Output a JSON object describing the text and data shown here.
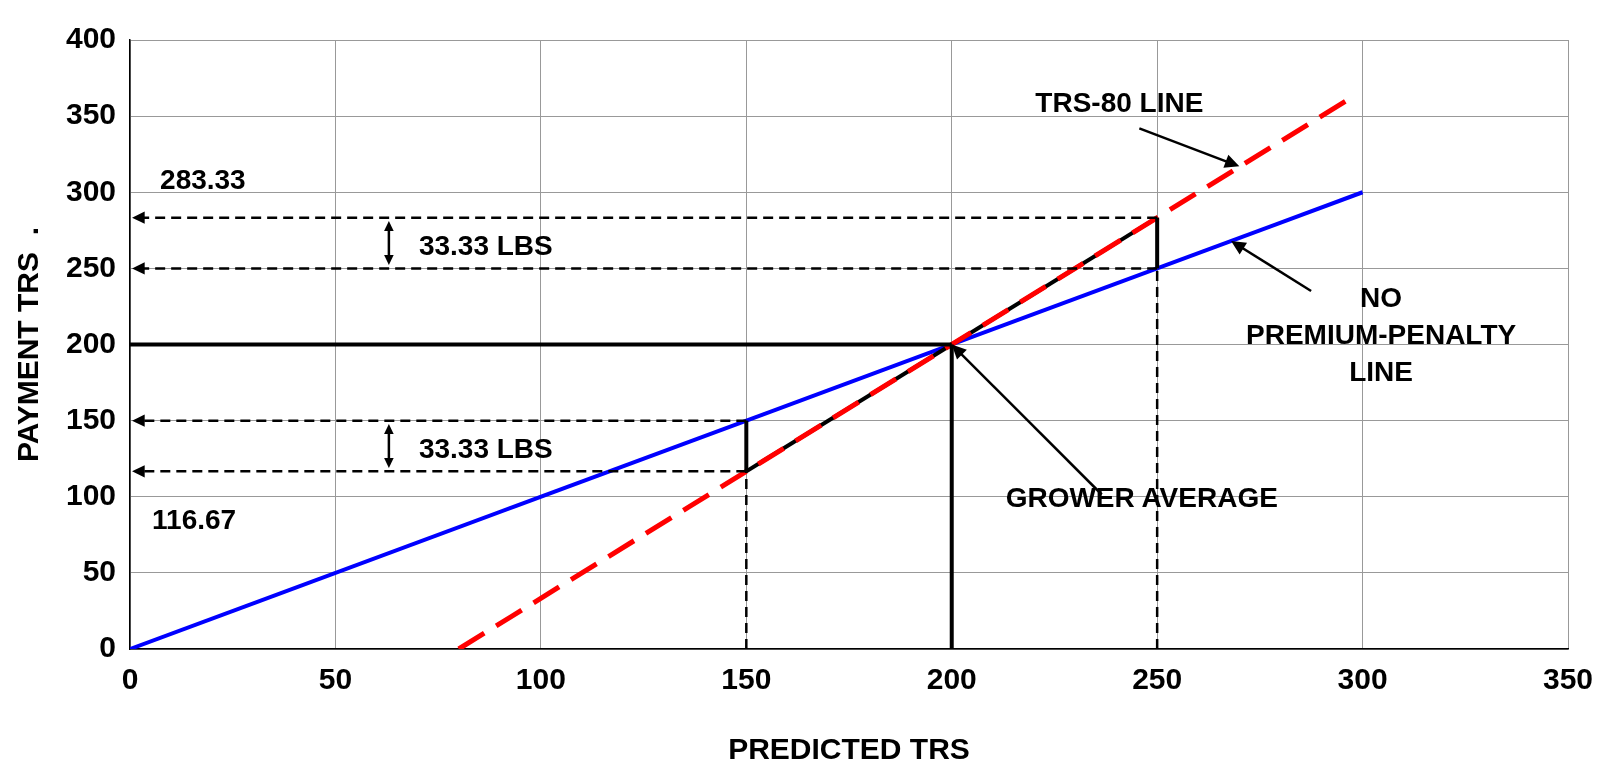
{
  "chart_data": {
    "type": "line",
    "xlabel": "PREDICTED TRS",
    "ylabel": "PAYMENT TRS  .",
    "xlim": [
      0,
      350
    ],
    "xticks": [
      0,
      50,
      100,
      150,
      200,
      250,
      300,
      350
    ],
    "ylim": [
      0,
      400
    ],
    "yticks": [
      0,
      50,
      100,
      150,
      200,
      250,
      300,
      350,
      400
    ],
    "grid": true,
    "legend": false,
    "marker": "none",
    "series": [
      {
        "color": "#0000ff",
        "x": [
          0,
          300
        ],
        "values": [
          0,
          300
        ],
        "line_style": "solid"
      },
      {
        "color": "#000000",
        "x": [
          150,
          250
        ],
        "values": [
          116.67,
          283.33
        ],
        "line_style": "solid"
      },
      {
        "color": "#ff0000",
        "x": [
          80,
          296
        ],
        "values": [
          0,
          360
        ],
        "line_style": "dashed"
      },
      {
        "color": "#000000",
        "x": [
          0,
          200
        ],
        "values": [
          200,
          200
        ],
        "line_style": "solid"
      },
      {
        "color": "#000000",
        "x": [
          200,
          200
        ],
        "values": [
          0,
          200
        ],
        "line_style": "solid"
      },
      {
        "color": "#000000",
        "x": [
          150,
          150
        ],
        "values": [
          116.67,
          150
        ],
        "line_style": "solid"
      },
      {
        "color": "#000000",
        "x": [
          250,
          250
        ],
        "values": [
          250,
          283.33
        ],
        "line_style": "solid"
      },
      {
        "color": "#000000",
        "x": [
          150,
          150
        ],
        "values": [
          0,
          116.67
        ],
        "line_style": "dashed"
      },
      {
        "color": "#000000",
        "x": [
          250,
          250
        ],
        "values": [
          0,
          250
        ],
        "line_style": "dashed"
      }
    ],
    "annotations": [
      {
        "text": "TRS-80 LINE",
        "x": 270,
        "y": 317
      },
      {
        "text": "NO PREMIUM-PENALTY LINE",
        "x": 268,
        "y": 268
      },
      "GROWER AVERAGE",
      "283.33",
      "116.67",
      "33.33 LBS",
      "33.33 LBS"
    ]
  }
}
